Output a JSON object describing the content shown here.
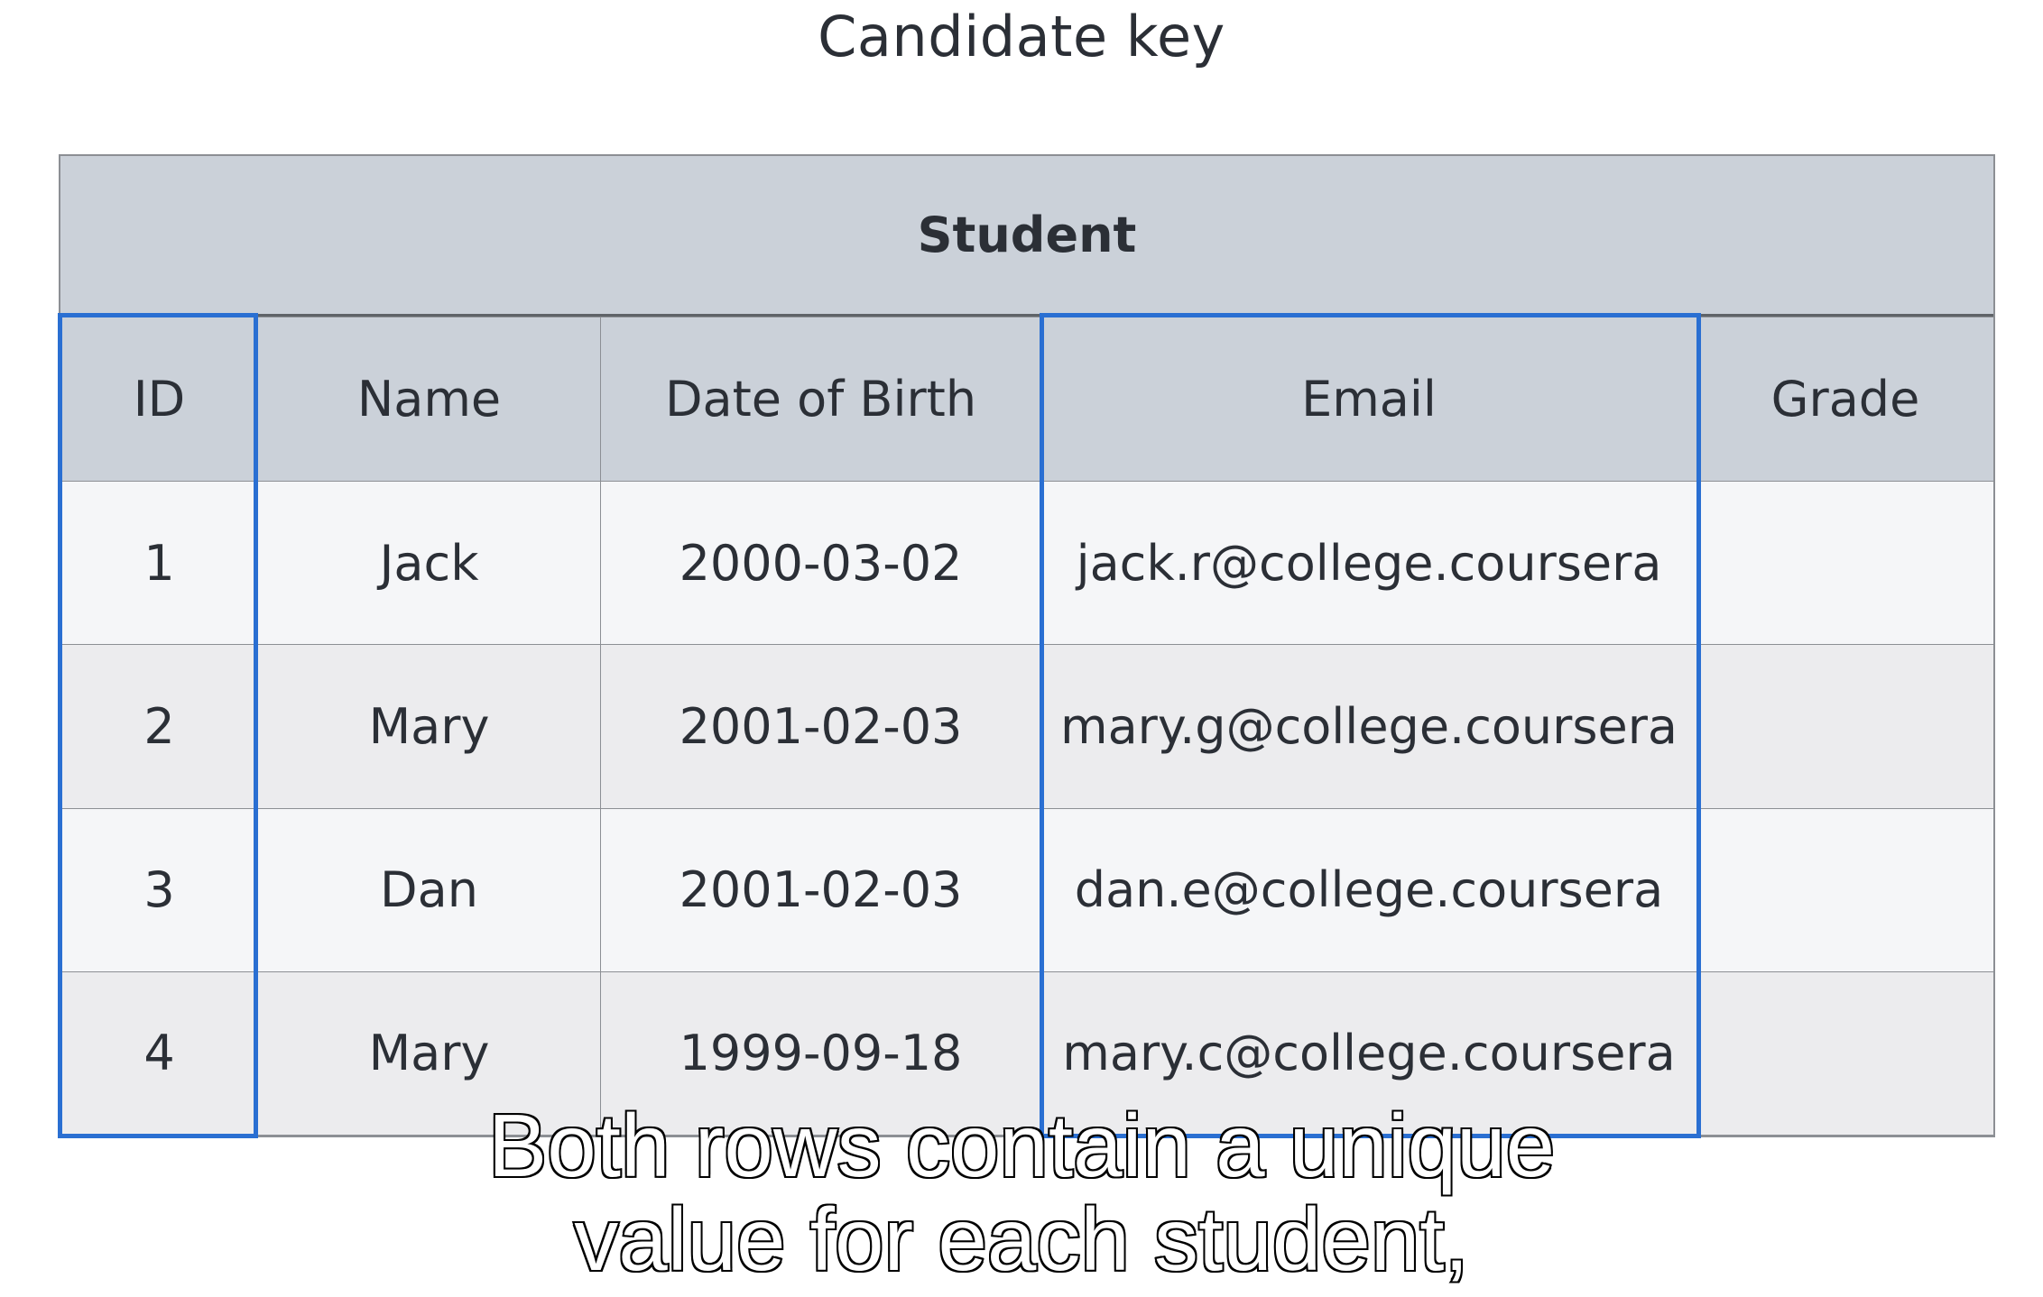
{
  "title": "Candidate key",
  "table": {
    "caption": "Student",
    "columns": [
      "ID",
      "Name",
      "Date of Birth",
      "Email",
      "Grade"
    ],
    "rows": [
      [
        "1",
        "Jack",
        "2000-03-02",
        "jack.r@college.coursera",
        ""
      ],
      [
        "2",
        "Mary",
        "2001-02-03",
        "mary.g@college.coursera",
        ""
      ],
      [
        "3",
        "Dan",
        "2001-02-03",
        "dan.e@college.coursera",
        ""
      ],
      [
        "4",
        "Mary",
        "1999-09-18",
        "mary.c@college.coursera",
        ""
      ]
    ],
    "highlighted_columns": [
      "ID",
      "Email"
    ]
  },
  "subtitle": {
    "line1": "Both rows contain a unique",
    "line2": "value for each student,"
  },
  "colors": {
    "highlight": "#2a6fd2",
    "header_bg": "#cbd1d9"
  }
}
